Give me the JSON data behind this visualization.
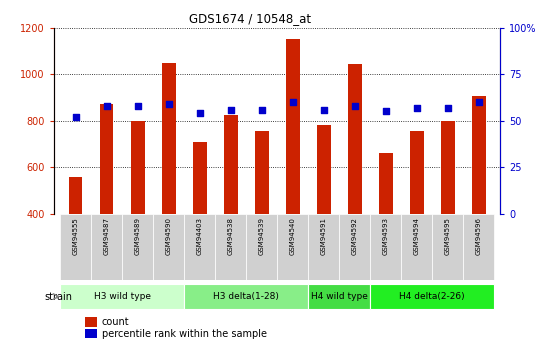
{
  "title": "GDS1674 / 10548_at",
  "samples": [
    "GSM94555",
    "GSM94587",
    "GSM94589",
    "GSM94590",
    "GSM94403",
    "GSM94538",
    "GSM94539",
    "GSM94540",
    "GSM94591",
    "GSM94592",
    "GSM94593",
    "GSM94594",
    "GSM94595",
    "GSM94596"
  ],
  "xtick_labels": [
    "555",
    "587",
    "589",
    "590",
    "403",
    "538",
    "539",
    "540",
    "591",
    "592",
    "593",
    "594",
    "595",
    "596"
  ],
  "counts": [
    560,
    870,
    800,
    1050,
    710,
    825,
    755,
    1150,
    780,
    1045,
    660,
    755,
    800,
    905
  ],
  "percentiles": [
    52,
    58,
    58,
    59,
    54,
    56,
    56,
    60,
    56,
    58,
    55,
    57,
    57,
    60
  ],
  "count_base": 400,
  "ylim_left": [
    400,
    1200
  ],
  "ylim_right": [
    0,
    100
  ],
  "yticks_left": [
    400,
    600,
    800,
    1000,
    1200
  ],
  "yticks_right": [
    0,
    25,
    50,
    75,
    100
  ],
  "bar_color": "#cc2200",
  "dot_color": "#0000cc",
  "groups": [
    {
      "label": "H3 wild type",
      "start": 0,
      "end": 3,
      "color": "#ccffcc"
    },
    {
      "label": "H3 delta(1-28)",
      "start": 4,
      "end": 7,
      "color": "#88ee88"
    },
    {
      "label": "H4 wild type",
      "start": 8,
      "end": 9,
      "color": "#44dd44"
    },
    {
      "label": "H4 delta(2-26)",
      "start": 10,
      "end": 13,
      "color": "#22ee22"
    }
  ],
  "strain_label": "strain",
  "legend_count": "count",
  "legend_pct": "percentile rank within the sample",
  "tick_label_color_left": "#cc2200",
  "tick_label_color_right": "#0000cc",
  "xtick_bg_color": "#d0d0d0",
  "sample_prefix": "GSM9"
}
